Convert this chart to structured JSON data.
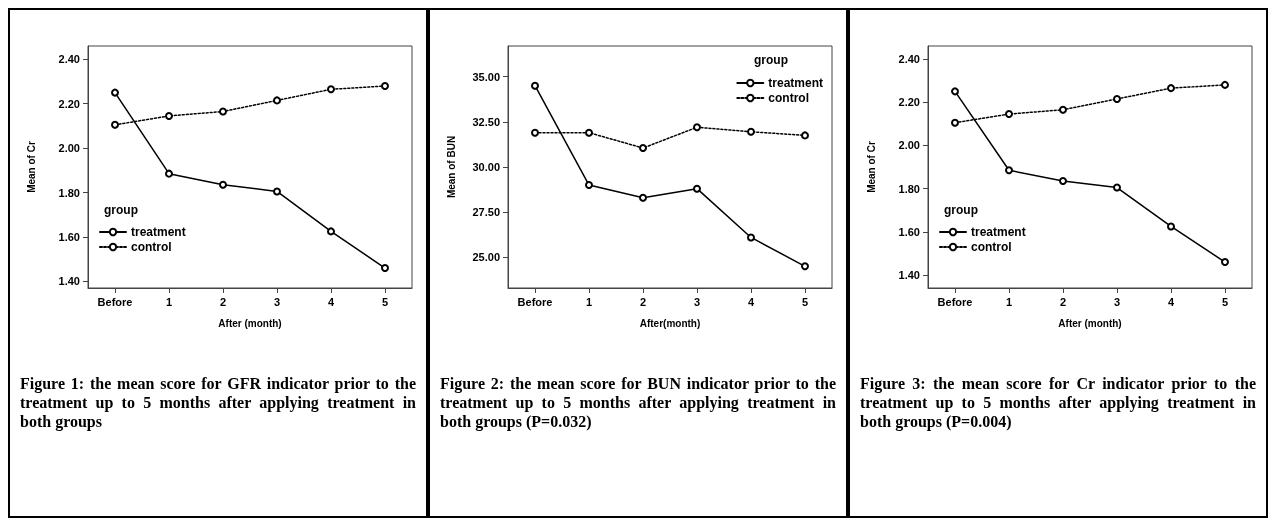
{
  "chart_data": [
    {
      "type": "line",
      "xlabel": "After (month)",
      "ylabel": "Mean of Cr",
      "legend_title": "group",
      "legend": "bottom left",
      "marker": "circle",
      "grid": false,
      "categories": [
        "Before",
        "1",
        "2",
        "3",
        "4",
        "5"
      ],
      "ylim": [
        1.37,
        2.46
      ],
      "yticks": [
        {
          "value": 1.4,
          "label": "1.40"
        },
        {
          "value": 1.6,
          "label": "1.60"
        },
        {
          "value": 1.8,
          "label": "1.80"
        },
        {
          "value": 2.0,
          "label": "2.00"
        },
        {
          "value": 2.2,
          "label": "2.20"
        },
        {
          "value": 2.4,
          "label": "2.40"
        }
      ],
      "series": [
        {
          "name": "treatment",
          "color": "#000000",
          "line_style": "solid",
          "values": [
            2.25,
            1.885,
            1.835,
            1.805,
            1.625,
            1.46
          ]
        },
        {
          "name": "control",
          "color": "#000000",
          "line_style": "dotted",
          "values": [
            2.105,
            2.145,
            2.165,
            2.215,
            2.265,
            2.28
          ]
        }
      ],
      "annotations": [
        "Figure 1: the mean score for GFR indicator prior to the treatment up to 5 months after applying treatment in both groups"
      ]
    },
    {
      "type": "line",
      "xlabel": "After(month)",
      "ylabel": "Mean of BUN",
      "legend_title": "group",
      "legend": "top right",
      "marker": "circle",
      "grid": false,
      "categories": [
        "Before",
        "1",
        "2",
        "3",
        "4",
        "5"
      ],
      "ylim": [
        23.3,
        36.7
      ],
      "yticks": [
        {
          "value": 25,
          "label": "25.00"
        },
        {
          "value": 27.5,
          "label": "27.50"
        },
        {
          "value": 30,
          "label": "30.00"
        },
        {
          "value": 32.5,
          "label": "32.50"
        },
        {
          "value": 35,
          "label": "35.00"
        }
      ],
      "series": [
        {
          "name": "treatment",
          "color": "#000000",
          "line_style": "solid",
          "values": [
            34.5,
            29.0,
            28.3,
            28.8,
            26.1,
            24.5
          ]
        },
        {
          "name": "control",
          "color": "#000000",
          "line_style": "dotted",
          "values": [
            31.9,
            31.9,
            31.05,
            32.2,
            31.95,
            31.75
          ]
        }
      ],
      "annotations": [
        "Figure 2: the mean score for BUN indicator prior to the treatment up to 5 months after applying treatment in both groups (P=0.032)"
      ]
    },
    {
      "type": "line",
      "xlabel": "After (month)",
      "ylabel": "Mean of Cr",
      "legend_title": "group",
      "legend": "bottom left",
      "marker": "circle",
      "grid": false,
      "categories": [
        "Before",
        "1",
        "2",
        "3",
        "4",
        "5"
      ],
      "ylim": [
        1.34,
        2.46
      ],
      "yticks": [
        {
          "value": 1.4,
          "label": "1.40"
        },
        {
          "value": 1.6,
          "label": "1.60"
        },
        {
          "value": 1.8,
          "label": "1.80"
        },
        {
          "value": 2.0,
          "label": "2.00"
        },
        {
          "value": 2.2,
          "label": "2.20"
        },
        {
          "value": 2.4,
          "label": "2.40"
        }
      ],
      "series": [
        {
          "name": "treatment",
          "color": "#000000",
          "line_style": "solid",
          "values": [
            2.25,
            1.885,
            1.835,
            1.805,
            1.625,
            1.46
          ]
        },
        {
          "name": "control",
          "color": "#000000",
          "line_style": "dotted",
          "values": [
            2.105,
            2.145,
            2.165,
            2.215,
            2.265,
            2.28
          ]
        }
      ],
      "annotations": [
        "Figure 3: the mean score for Cr indicator prior to the treatment up to 5 months after applying treatment in both groups (P=0.004)"
      ]
    }
  ]
}
